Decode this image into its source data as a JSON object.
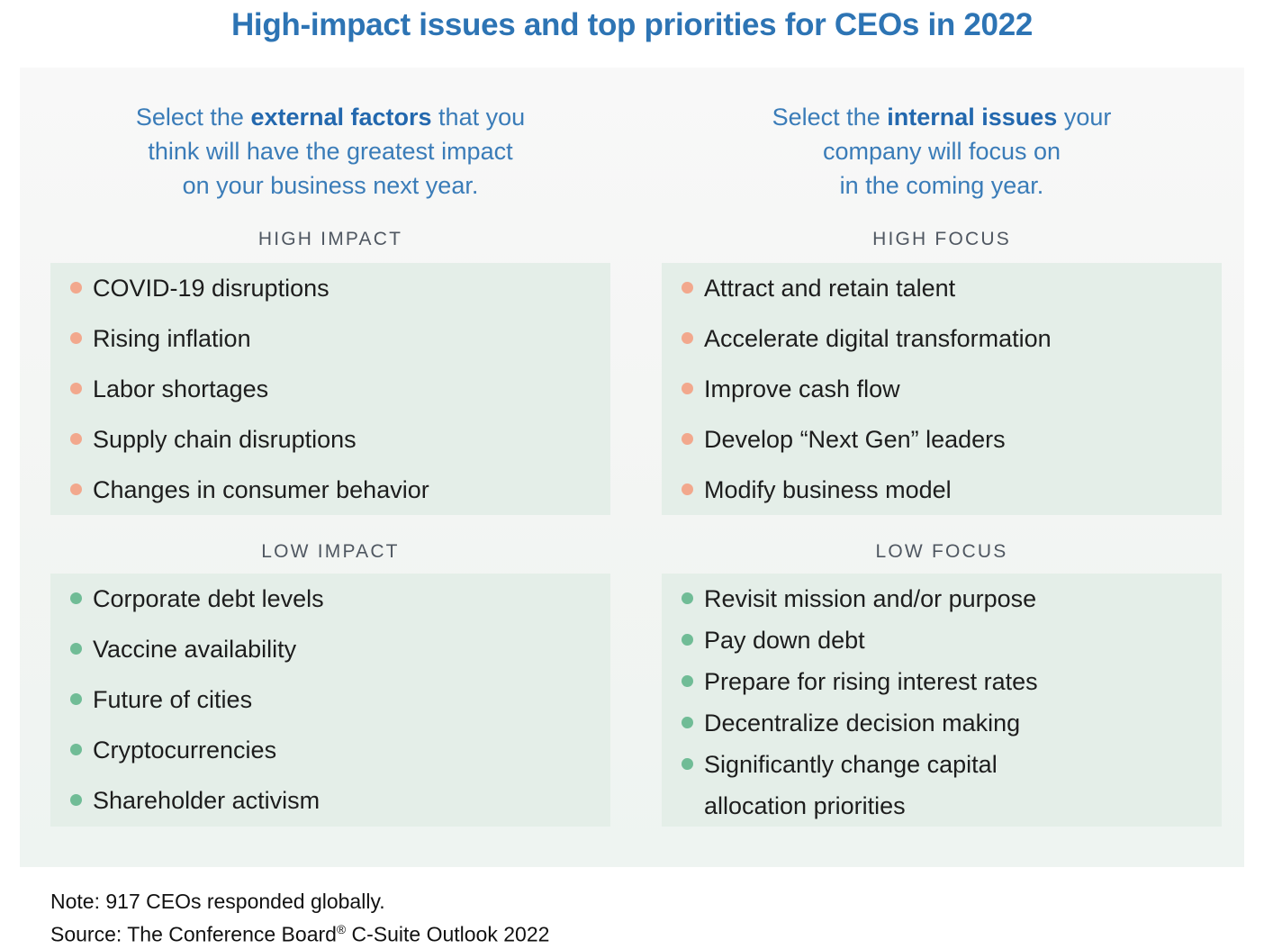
{
  "title": "High-impact issues and top priorities for CEOs in 2022",
  "columns": [
    {
      "question": {
        "line1_pre": "Select the ",
        "line1_bold": "external factors",
        "line1_post": " that you",
        "line2": "think will have the greatest impact",
        "line3": "on your business next year."
      },
      "high": {
        "label": "HIGH IMPACT",
        "items": [
          "COVID-19 disruptions",
          "Rising inflation",
          "Labor shortages",
          "Supply chain disruptions",
          "Changes in consumer behavior"
        ]
      },
      "low": {
        "label": "LOW IMPACT",
        "items": [
          "Corporate debt levels",
          "Vaccine availability",
          "Future of cities",
          "Cryptocurrencies",
          "Shareholder activism"
        ]
      }
    },
    {
      "question": {
        "line1_pre": "Select the ",
        "line1_bold": "internal issues",
        "line1_post": " your",
        "line2": "company will focus on",
        "line3": "in the coming year."
      },
      "high": {
        "label": "HIGH FOCUS",
        "items": [
          "Attract and retain talent",
          "Accelerate digital transformation",
          "Improve cash flow",
          "Develop “Next Gen” leaders",
          "Modify business model"
        ]
      },
      "low": {
        "label": "LOW FOCUS",
        "items": [
          "Revisit mission and/or purpose",
          "Pay down debt",
          "Prepare for rising interest rates",
          "Decentralize decision making",
          "Significantly change capital allocation priorities"
        ]
      }
    }
  ],
  "footer": {
    "note": "Note: 917 CEOs responded globally.",
    "source_pre": "Source: The Conference Board",
    "source_reg": "®",
    "source_post": " C-Suite Outlook 2022"
  },
  "colors": {
    "title_blue": "#2d74b4",
    "question_blue": "#3a7cb8",
    "question_bold_blue": "#2368ae",
    "label_gray": "#4f5761",
    "panel_bg_top": "#f8f8f8",
    "panel_bg_bottom": "#eef4f1",
    "list_bg": "#e4eee8",
    "bullet_high": "#f2a88d",
    "bullet_low": "#70bc96",
    "list_text": "#1d1d1d"
  }
}
